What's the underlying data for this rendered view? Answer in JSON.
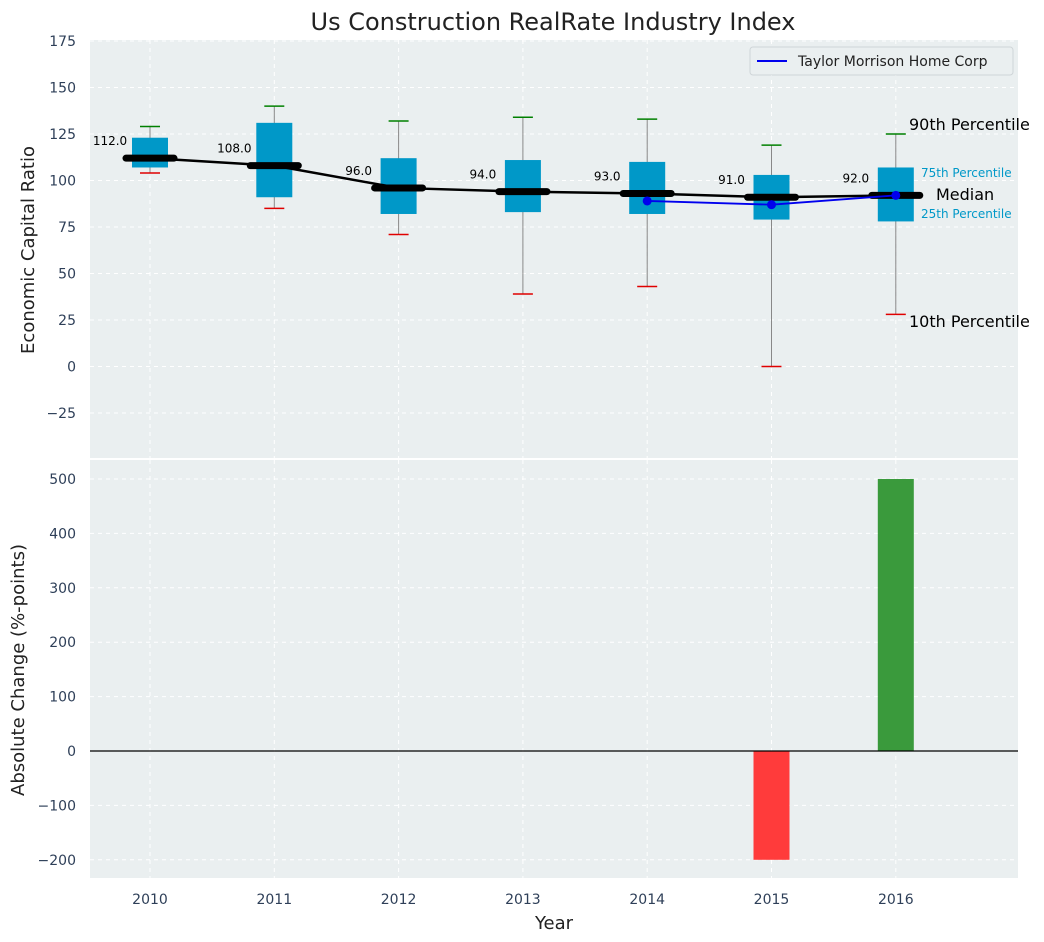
{
  "chart_data": [
    {
      "type": "box",
      "title": "Us Construction RealRate Industry Index",
      "xlabel": "",
      "ylabel": "Economic Capital Ratio",
      "ylim": [
        -50,
        175
      ],
      "yticks": [
        175,
        150,
        125,
        100,
        75,
        50,
        25,
        0,
        -25
      ],
      "ytick_labels": [
        "175",
        "150",
        "125",
        "100",
        "75",
        "50",
        "25",
        "0",
        "−25"
      ],
      "categories": [
        "2010",
        "2011",
        "2012",
        "2013",
        "2014",
        "2015",
        "2016"
      ],
      "boxes": [
        {
          "year": "2010",
          "p10": 104,
          "q1": 107,
          "median": 112,
          "q3": 123,
          "p90": 129,
          "median_label": "112.0"
        },
        {
          "year": "2011",
          "p10": 85,
          "q1": 91,
          "median": 108,
          "q3": 131,
          "p90": 140,
          "median_label": "108.0"
        },
        {
          "year": "2012",
          "p10": 71,
          "q1": 82,
          "median": 96,
          "q3": 112,
          "p90": 132,
          "median_label": "96.0"
        },
        {
          "year": "2013",
          "p10": 39,
          "q1": 83,
          "median": 94,
          "q3": 111,
          "p90": 134,
          "median_label": "94.0"
        },
        {
          "year": "2014",
          "p10": 43,
          "q1": 82,
          "median": 93,
          "q3": 110,
          "p90": 133,
          "median_label": "93.0"
        },
        {
          "year": "2015",
          "p10": 0,
          "q1": 79,
          "median": 91,
          "q3": 103,
          "p90": 119,
          "median_label": "91.0"
        },
        {
          "year": "2016",
          "p10": 28,
          "q1": 78,
          "median": 92,
          "q3": 107,
          "p90": 125,
          "median_label": "92.0"
        }
      ],
      "series": [
        {
          "name": "Taylor Morrison Home Corp",
          "categories": [
            "2014",
            "2015",
            "2016"
          ],
          "values": [
            89,
            87,
            92
          ],
          "color": "#0000ee"
        }
      ],
      "legend": {
        "position": "top-right",
        "entries": [
          "Taylor Morrison Home Corp"
        ]
      },
      "annotations": {
        "p90": "90th Percentile",
        "q3": "75th Percentile",
        "median": "Median",
        "q1": "25th Percentile",
        "p10": "10th Percentile"
      },
      "colors": {
        "box": "#0098c8",
        "median": "#000000",
        "whisker_top": "#008000",
        "whisker_bottom": "#e00000",
        "whisker_line": "#888888",
        "background": "#eaeff0"
      }
    },
    {
      "type": "bar",
      "xlabel": "Year",
      "ylabel": "Absolute Change (%-points)",
      "ylim": [
        -235,
        535
      ],
      "yticks": [
        500,
        400,
        300,
        200,
        100,
        0,
        -100,
        -200
      ],
      "ytick_labels": [
        "500",
        "400",
        "300",
        "200",
        "100",
        "0",
        "−100",
        "−200"
      ],
      "categories": [
        "2010",
        "2011",
        "2012",
        "2013",
        "2014",
        "2015",
        "2016"
      ],
      "values": [
        0,
        0,
        0,
        0,
        0,
        -200,
        500
      ],
      "colors": {
        "positive": "#3a9a3c",
        "negative": "#ff3b3b",
        "background": "#eaeff0"
      }
    }
  ]
}
